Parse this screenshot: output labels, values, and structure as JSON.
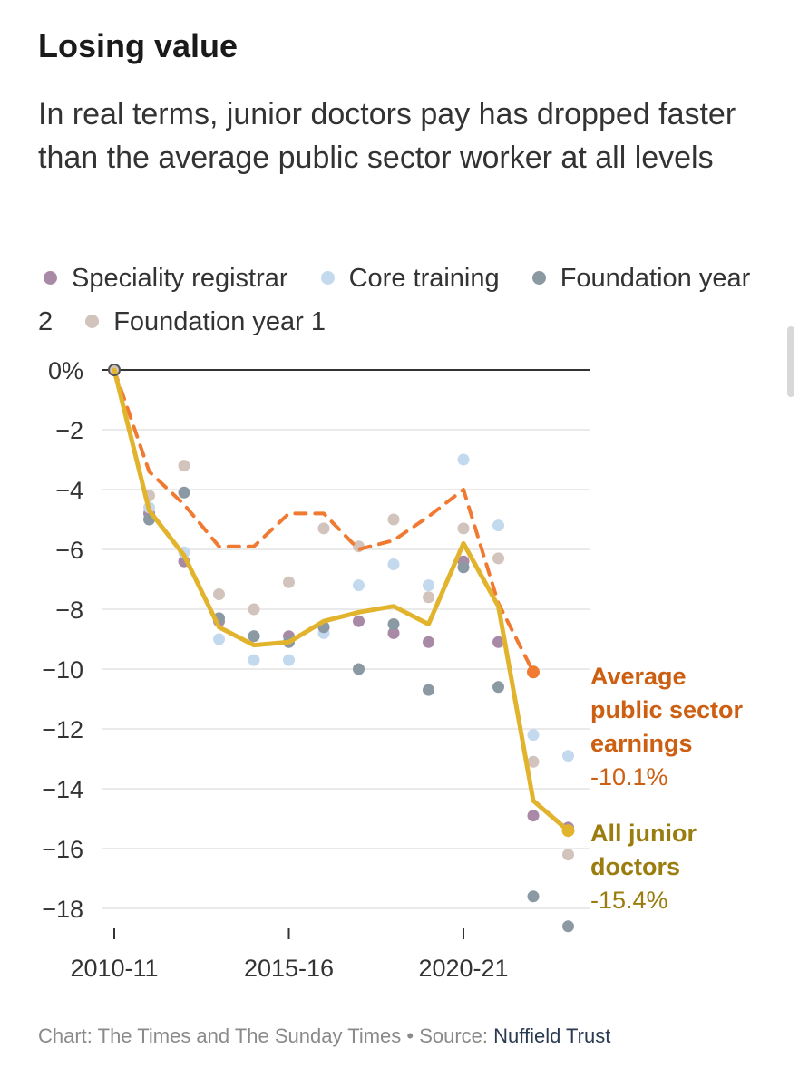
{
  "chart_data": {
    "type": "line",
    "title": "Losing value",
    "subtitle": "In real terms, junior doctors pay has dropped faster than the average public sector worker at all levels",
    "ylim": [
      -19,
      0
    ],
    "yticks": [
      0,
      -2,
      -4,
      -6,
      -8,
      -10,
      -12,
      -14,
      -16,
      -18
    ],
    "ytick_labels": [
      "0%",
      "−2",
      "−4",
      "−6",
      "−8",
      "−10",
      "−12",
      "−14",
      "−16",
      "−18"
    ],
    "x": [
      0,
      1,
      2,
      3,
      4,
      5,
      6,
      7,
      8,
      9,
      10,
      11,
      12,
      13
    ],
    "xticks": [
      0,
      5,
      10
    ],
    "xtick_labels": [
      "2010-11",
      "2015-16",
      "2020-21"
    ],
    "dot_series": [
      {
        "name": "Speciality registrar",
        "color": "#a98aa6",
        "values": [
          0,
          -4.8,
          -6.4,
          -8.4,
          -8.9,
          -8.9,
          -8.6,
          -8.4,
          -8.8,
          -9.1,
          -6.4,
          -9.1,
          -14.9,
          -15.3
        ]
      },
      {
        "name": "Core training",
        "color": "#c3d9ee",
        "values": [
          0,
          -4.6,
          -6.1,
          -9.0,
          -9.7,
          -9.7,
          -8.8,
          -7.2,
          -6.5,
          -7.2,
          -3.0,
          -5.2,
          -12.2,
          -12.9
        ]
      },
      {
        "name": "Foundation year 2",
        "color": "#8b99a3",
        "values": [
          0,
          -5.0,
          -4.1,
          -8.3,
          -8.9,
          -9.1,
          -8.6,
          -10.0,
          -8.5,
          -10.7,
          -6.6,
          -10.6,
          -17.6,
          -18.6
        ]
      },
      {
        "name": "Foundation year 1",
        "color": "#d2c3bd",
        "values": [
          0,
          -4.2,
          -3.2,
          -7.5,
          -8.0,
          -7.1,
          -5.3,
          -5.9,
          -5.0,
          -7.6,
          -5.3,
          -6.3,
          -13.1,
          -16.2
        ]
      }
    ],
    "line_series": [
      {
        "name": "Average public sector earnings",
        "value_label": "-10.1%",
        "color": "#f07a32",
        "label_color": "#cc5f12",
        "dashed": true,
        "values": [
          0,
          -3.4,
          -4.5,
          -5.9,
          -5.9,
          -4.8,
          -4.8,
          -6.0,
          -5.7,
          -4.9,
          -4.0,
          -7.8,
          -10.1
        ]
      },
      {
        "name": "All junior doctors",
        "value_label": "-15.4%",
        "color": "#e2b42e",
        "label_color": "#9a7d0e",
        "dashed": false,
        "values": [
          0,
          -4.7,
          -6.2,
          -8.6,
          -9.2,
          -9.1,
          -8.4,
          -8.1,
          -7.9,
          -8.5,
          -5.8,
          -7.9,
          -14.4,
          -15.4
        ]
      }
    ]
  },
  "footer": {
    "credit": "Chart: The Times and The Sunday Times • Source: ",
    "source": "Nuffield Trust"
  }
}
